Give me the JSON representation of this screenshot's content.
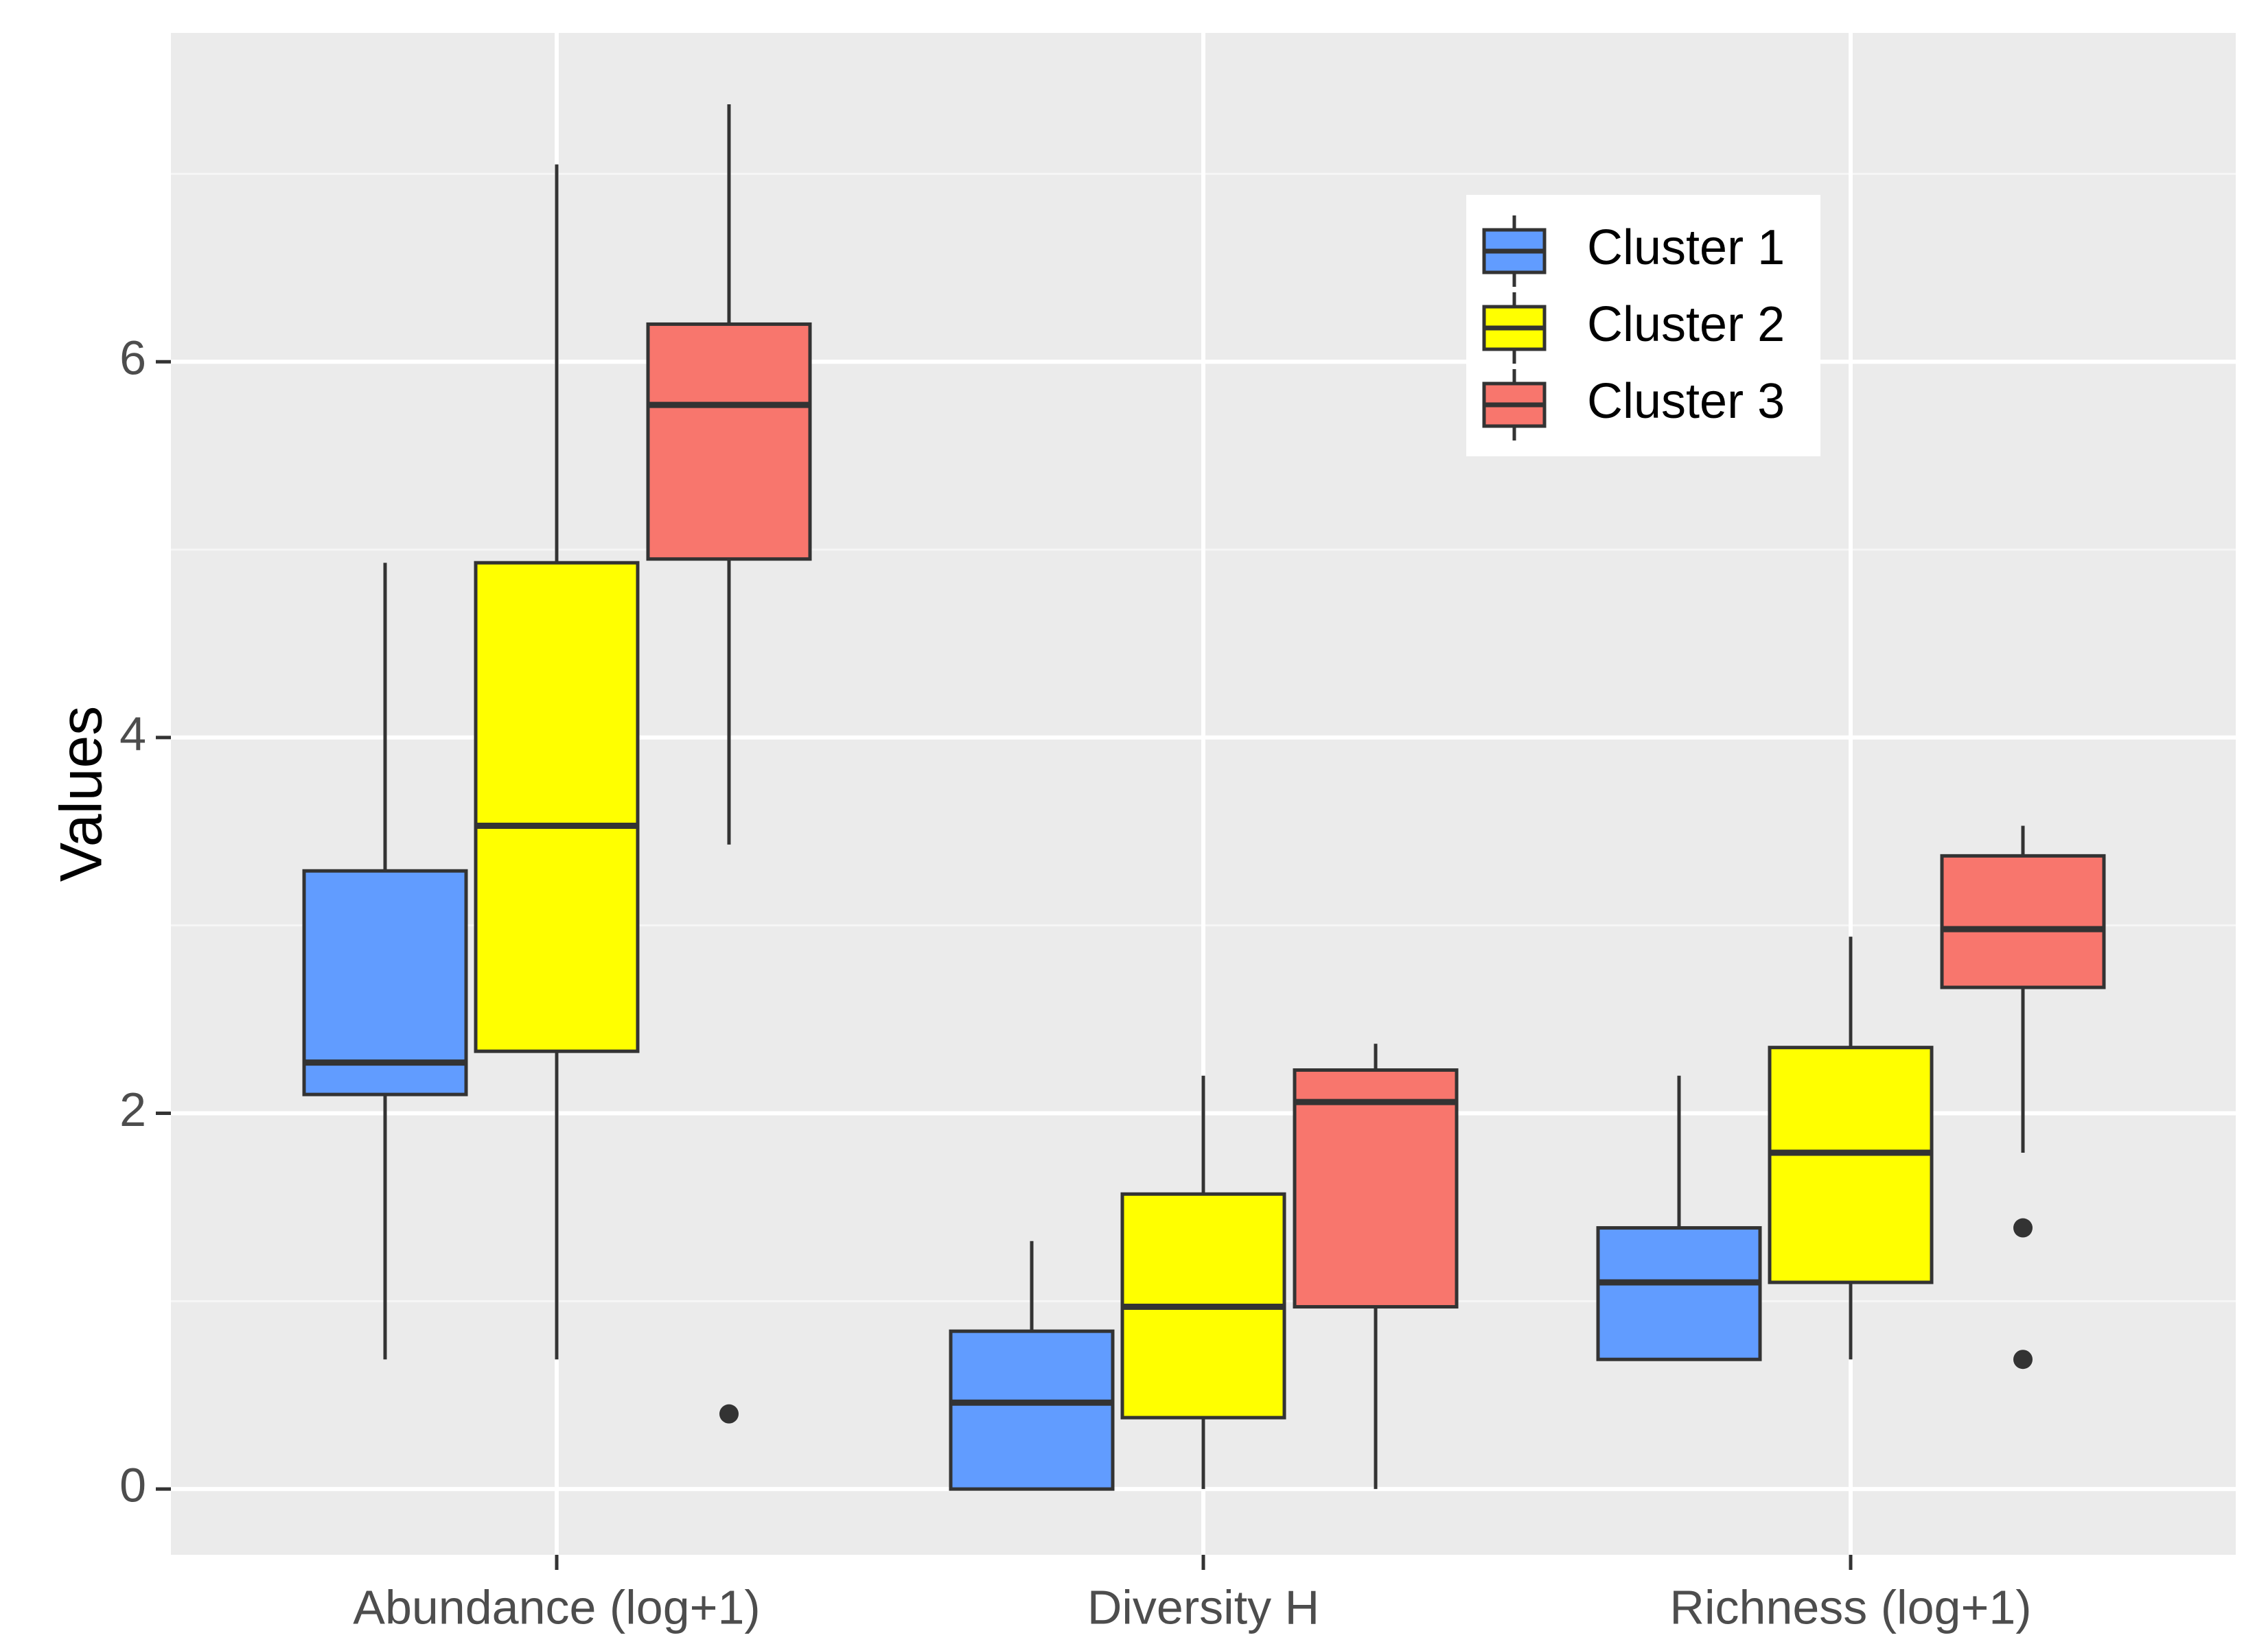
{
  "chart_data": {
    "type": "boxplot",
    "title": "",
    "xlabel": "",
    "ylabel": "Values",
    "ylim": [
      -0.35,
      7.75
    ],
    "yticks": [
      0,
      2,
      4,
      6
    ],
    "grid": true,
    "legend_position": "top-right",
    "categories": [
      "Abundance (log+1)",
      "Diversity H",
      "Richness (log+1)"
    ],
    "series": [
      {
        "name": "Cluster 1",
        "color": "#619CFF",
        "boxes": [
          {
            "min": 0.69,
            "q1": 2.1,
            "median": 2.27,
            "q3": 3.29,
            "max": 4.93,
            "outliers": []
          },
          {
            "min": 0.0,
            "q1": 0.0,
            "median": 0.46,
            "q3": 0.84,
            "max": 1.32,
            "outliers": []
          },
          {
            "min": 0.69,
            "q1": 0.69,
            "median": 1.1,
            "q3": 1.39,
            "max": 2.2,
            "outliers": []
          }
        ]
      },
      {
        "name": "Cluster 2",
        "color": "#FFFF00",
        "boxes": [
          {
            "min": 0.69,
            "q1": 2.33,
            "median": 3.53,
            "q3": 4.93,
            "max": 7.05,
            "outliers": []
          },
          {
            "min": 0.0,
            "q1": 0.38,
            "median": 0.97,
            "q3": 1.57,
            "max": 2.2,
            "outliers": []
          },
          {
            "min": 0.69,
            "q1": 1.1,
            "median": 1.79,
            "q3": 2.35,
            "max": 2.94,
            "outliers": []
          }
        ]
      },
      {
        "name": "Cluster 3",
        "color": "#F8766D",
        "boxes": [
          {
            "min": 3.43,
            "q1": 4.95,
            "median": 5.77,
            "q3": 6.2,
            "max": 7.37,
            "outliers": [
              0.4
            ]
          },
          {
            "min": 0.0,
            "q1": 0.97,
            "median": 2.06,
            "q3": 2.23,
            "max": 2.37,
            "outliers": []
          },
          {
            "min": 1.79,
            "q1": 2.67,
            "median": 2.98,
            "q3": 3.37,
            "max": 3.53,
            "outliers": [
              1.39,
              0.69
            ]
          }
        ]
      }
    ]
  }
}
